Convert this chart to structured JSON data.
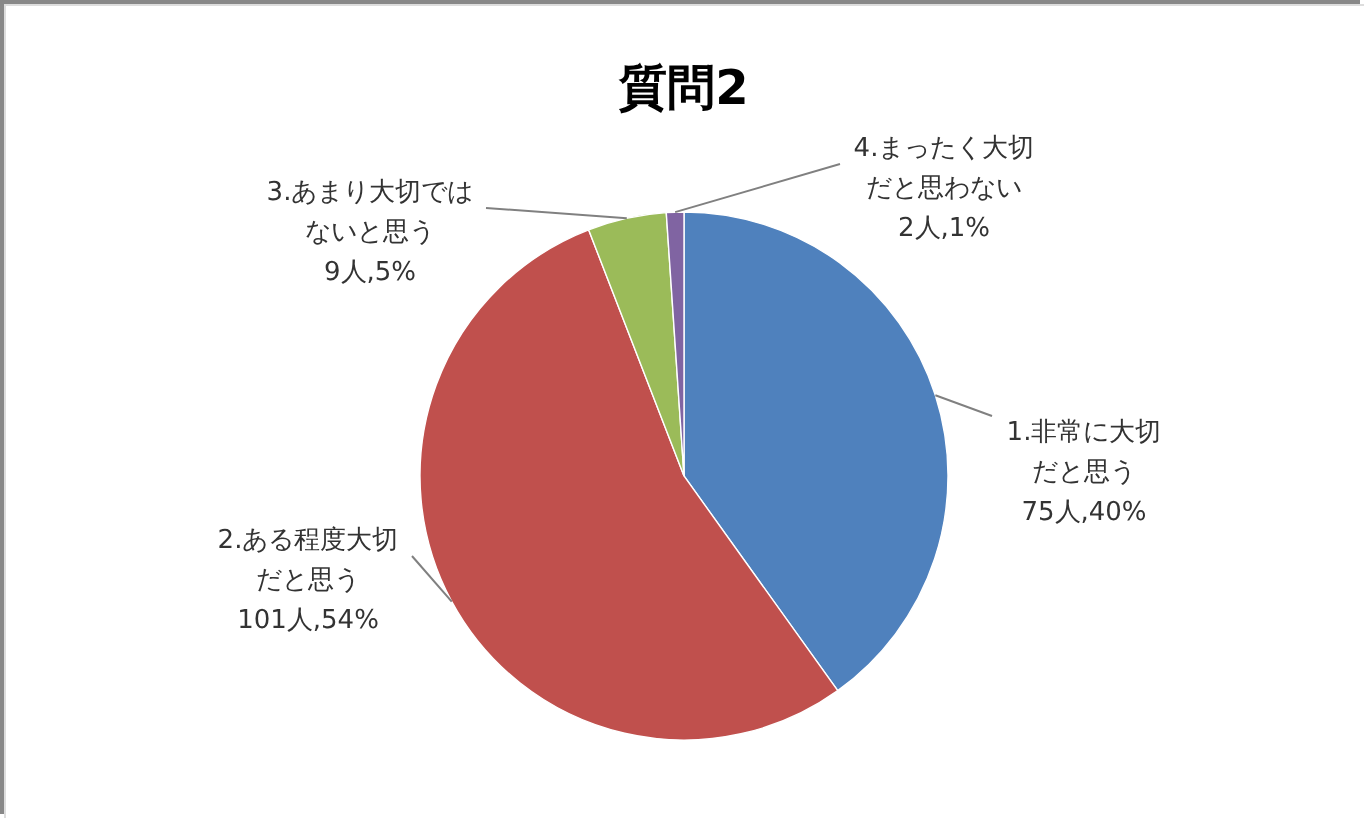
{
  "chart_data": {
    "type": "pie",
    "title": "質問2",
    "categories": [
      "1.非常に大切だと思う",
      "2.ある程度大切だと思う",
      "3.あまり大切ではないと思う",
      "4.まったく大切だと思わない"
    ],
    "values": [
      75,
      101,
      9,
      2
    ],
    "colors": [
      "#4f81bd",
      "#c0504d",
      "#9bbb59",
      "#8064a2"
    ],
    "value_labels": [
      "75人,40%",
      "101人,54%",
      "9人,5%",
      "2人,1%"
    ]
  }
}
